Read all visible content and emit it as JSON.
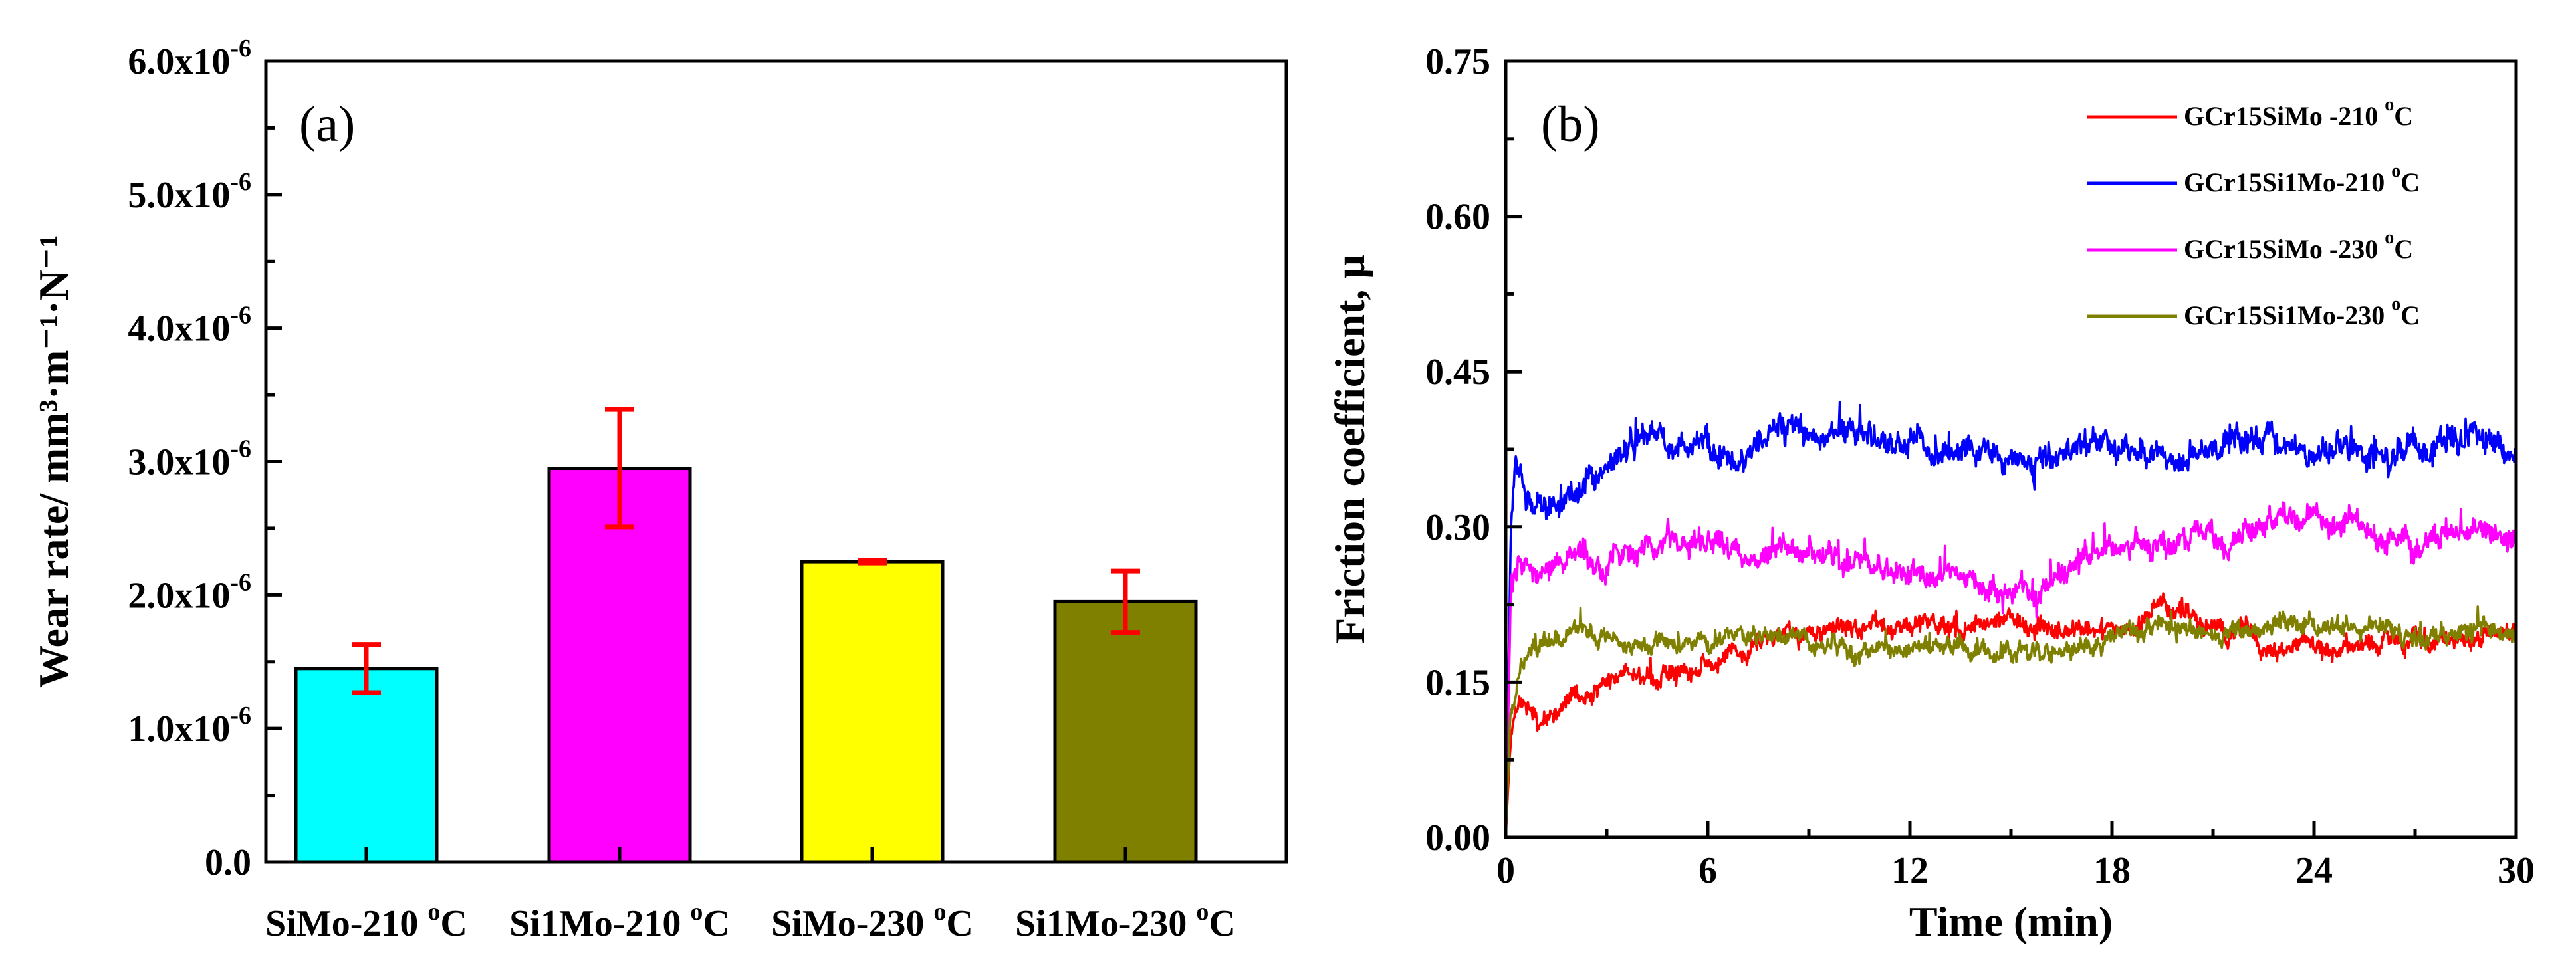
{
  "chart_data": [
    {
      "panel": "(a)",
      "type": "bar",
      "ylabel": "Wear rate/ mm³·m⁻¹·N⁻¹",
      "ylim": [
        0,
        6e-06
      ],
      "yticks": [
        {
          "value": 0.0,
          "label": "0.0"
        },
        {
          "value": 1e-06,
          "mantissa": "1.0x10",
          "exp": "-6"
        },
        {
          "value": 2e-06,
          "mantissa": "2.0x10",
          "exp": "-6"
        },
        {
          "value": 3e-06,
          "mantissa": "3.0x10",
          "exp": "-6"
        },
        {
          "value": 4e-06,
          "mantissa": "4.0x10",
          "exp": "-6"
        },
        {
          "value": 5e-06,
          "mantissa": "5.0x10",
          "exp": "-6"
        },
        {
          "value": 6e-06,
          "mantissa": "6.0x10",
          "exp": "-6"
        }
      ],
      "categories": [
        {
          "name": "SiMo-210",
          "unit": "C",
          "value": 1.45e-06,
          "error": 1.8e-07,
          "color": "#00FFFF"
        },
        {
          "name": "Si1Mo-210",
          "unit": "C",
          "value": 2.95e-06,
          "error": 4.4e-07,
          "color": "#FF00FF"
        },
        {
          "name": "SiMo-230",
          "unit": "C",
          "value": 2.25e-06,
          "error": 1e-08,
          "color": "#FFFF00"
        },
        {
          "name": "Si1Mo-230",
          "unit": "C",
          "value": 1.95e-06,
          "error": 2.3e-07,
          "color": "#808000"
        }
      ],
      "degree_symbol": "o",
      "error_bar_color": "#FF0000"
    },
    {
      "panel": "(b)",
      "type": "line",
      "xlabel": "Time (min)",
      "ylabel": "Friction coefficient, μ",
      "xlim": [
        0,
        30
      ],
      "ylim": [
        0,
        0.75
      ],
      "xticks": [
        "0",
        "6",
        "12",
        "18",
        "24",
        "30"
      ],
      "yticks": [
        "0.00",
        "0.15",
        "0.30",
        "0.45",
        "0.60",
        "0.75"
      ],
      "legend_position": "top-right",
      "series": [
        {
          "name": "GCr15SiMo -210 ",
          "unit": "C",
          "color": "#FF0000",
          "seed": 11,
          "noise": 0.007,
          "profile": [
            [
              0,
              0.0
            ],
            [
              0.15,
              0.1
            ],
            [
              0.4,
              0.14
            ],
            [
              1,
              0.125
            ],
            [
              2,
              0.14
            ],
            [
              3,
              0.155
            ],
            [
              5,
              0.17
            ],
            [
              7,
              0.18
            ],
            [
              10,
              0.19
            ],
            [
              12,
              0.195
            ],
            [
              15,
              0.2
            ],
            [
              18,
              0.205
            ],
            [
              19.5,
              0.22
            ],
            [
              21,
              0.21
            ],
            [
              23,
              0.195
            ],
            [
              27,
              0.2
            ],
            [
              30,
              0.195
            ]
          ]
        },
        {
          "name": "GCr15Si1Mo-210 ",
          "unit": "C",
          "color": "#0000FF",
          "seed": 23,
          "noise": 0.01,
          "profile": [
            [
              0,
              0.0
            ],
            [
              0.15,
              0.3
            ],
            [
              0.3,
              0.37
            ],
            [
              0.6,
              0.32
            ],
            [
              1.5,
              0.33
            ],
            [
              2.5,
              0.35
            ],
            [
              4,
              0.38
            ],
            [
              5.5,
              0.37
            ],
            [
              6.5,
              0.36
            ],
            [
              8,
              0.395
            ],
            [
              9.5,
              0.39
            ],
            [
              11,
              0.375
            ],
            [
              13,
              0.38
            ],
            [
              14.5,
              0.39
            ],
            [
              15.5,
              0.37
            ],
            [
              17,
              0.385
            ],
            [
              20,
              0.385
            ],
            [
              23,
              0.39
            ],
            [
              26,
              0.38
            ],
            [
              28,
              0.385
            ],
            [
              29.5,
              0.39
            ],
            [
              30,
              0.37
            ]
          ]
        },
        {
          "name": "GCr15SiMo -230 ",
          "unit": "C",
          "color": "#FF00FF",
          "seed": 37,
          "noise": 0.009,
          "profile": [
            [
              0,
              0.0
            ],
            [
              0.15,
              0.24
            ],
            [
              0.4,
              0.27
            ],
            [
              1,
              0.255
            ],
            [
              2,
              0.265
            ],
            [
              4,
              0.27
            ],
            [
              6,
              0.275
            ],
            [
              8,
              0.27
            ],
            [
              10,
              0.275
            ],
            [
              12,
              0.27
            ],
            [
              14,
              0.265
            ],
            [
              15.5,
              0.245
            ],
            [
              17,
              0.265
            ],
            [
              19,
              0.28
            ],
            [
              20.5,
              0.3
            ],
            [
              21.5,
              0.27
            ],
            [
              22.5,
              0.29
            ],
            [
              24,
              0.31
            ],
            [
              25.5,
              0.3
            ],
            [
              27,
              0.29
            ],
            [
              30,
              0.3
            ]
          ]
        },
        {
          "name": "GCr15Si1Mo-230 ",
          "unit": "C",
          "color": "#808000",
          "seed": 53,
          "noise": 0.007,
          "profile": [
            [
              0,
              0.0
            ],
            [
              0.15,
              0.13
            ],
            [
              0.5,
              0.175
            ],
            [
              1,
              0.19
            ],
            [
              2,
              0.2
            ],
            [
              3,
              0.195
            ],
            [
              4,
              0.185
            ],
            [
              6,
              0.19
            ],
            [
              8,
              0.19
            ],
            [
              9.5,
              0.175
            ],
            [
              11,
              0.18
            ],
            [
              13,
              0.19
            ],
            [
              15,
              0.185
            ],
            [
              16.5,
              0.18
            ],
            [
              18,
              0.19
            ],
            [
              20,
              0.2
            ],
            [
              22,
              0.205
            ],
            [
              24,
              0.21
            ],
            [
              27,
              0.2
            ],
            [
              30,
              0.2
            ]
          ]
        }
      ]
    }
  ]
}
